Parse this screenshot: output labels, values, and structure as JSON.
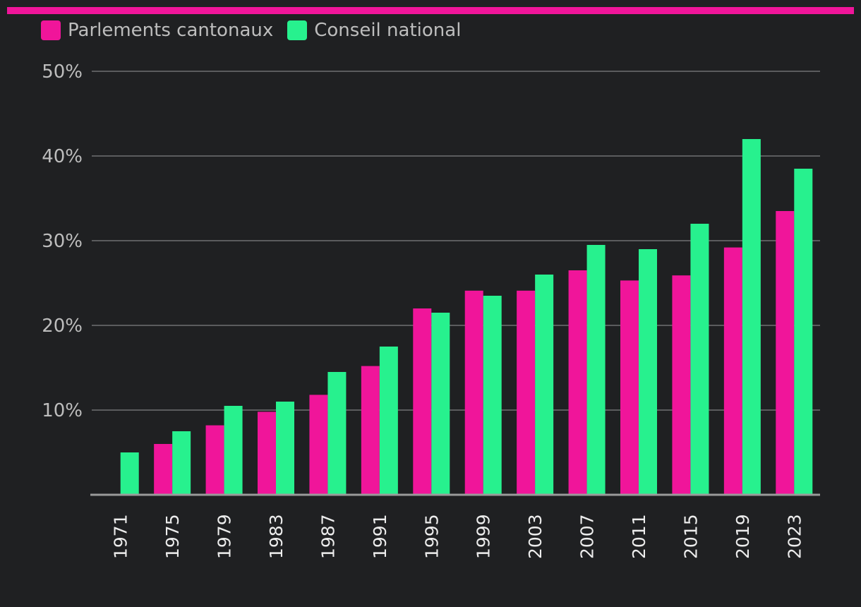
{
  "colors": {
    "background": "#1f2022",
    "accent_bar": "#f0159a",
    "grid": "#5b5c5e",
    "axis": "#9a9a9a"
  },
  "legend": {
    "items": [
      {
        "label": "Parlements cantonaux",
        "color": "#f0159a"
      },
      {
        "label": "Conseil national",
        "color": "#27f18e"
      }
    ]
  },
  "chart_data": {
    "type": "bar",
    "title": "",
    "xlabel": "",
    "ylabel": "",
    "ylim": [
      0,
      50
    ],
    "yticks": [
      10,
      20,
      30,
      40,
      50
    ],
    "ytick_labels": [
      "10%",
      "20%",
      "30%",
      "40%",
      "50%"
    ],
    "grid": true,
    "legend_position": "top-left",
    "categories": [
      "1971",
      "1975",
      "1979",
      "1983",
      "1987",
      "1991",
      "1995",
      "1999",
      "2003",
      "2007",
      "2011",
      "2015",
      "2019",
      "2023"
    ],
    "series": [
      {
        "name": "Parlements cantonaux",
        "color": "#f0159a",
        "values": [
          null,
          6.0,
          8.2,
          9.8,
          11.8,
          15.2,
          22.0,
          24.1,
          24.1,
          26.5,
          25.3,
          25.9,
          29.2,
          33.5
        ]
      },
      {
        "name": "Conseil national",
        "color": "#27f18e",
        "values": [
          5.0,
          7.5,
          10.5,
          11.0,
          14.5,
          17.5,
          21.5,
          23.5,
          26.0,
          29.5,
          29.0,
          32.0,
          42.0,
          38.5
        ]
      }
    ]
  }
}
